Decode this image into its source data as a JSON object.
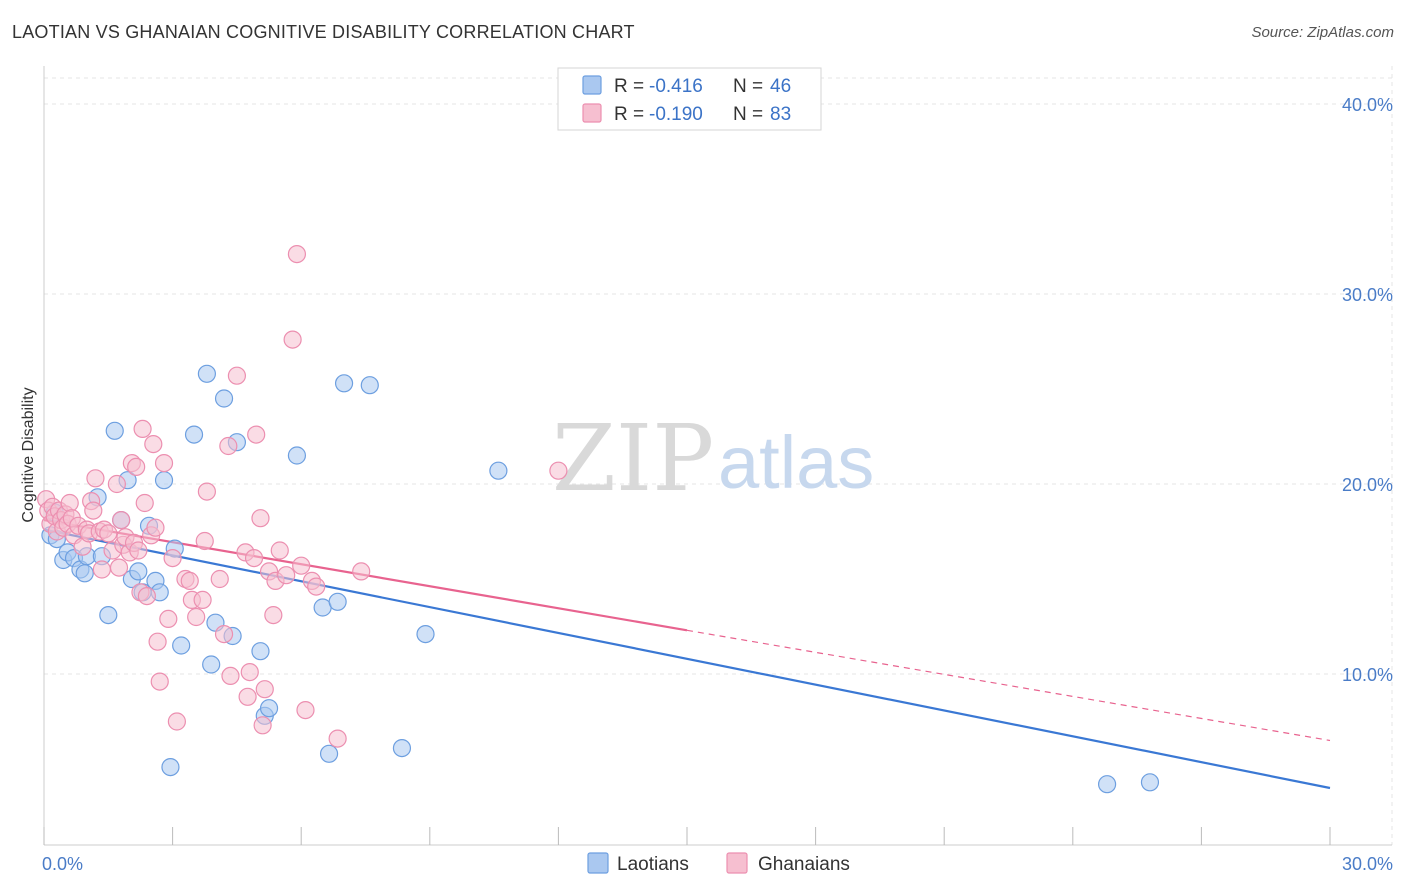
{
  "title": "LAOTIAN VS GHANAIAN COGNITIVE DISABILITY CORRELATION CHART",
  "source": "Source: ZipAtlas.com",
  "watermark": {
    "zip": "ZIP",
    "atlas": "atlas"
  },
  "colors": {
    "laotian_fill": "#aac8f0",
    "laotian_stroke": "#6d9fe0",
    "laotian_line": "#3a78d4",
    "ghanaian_fill": "#f6bfd0",
    "ghanaian_stroke": "#ec8fb0",
    "ghanaian_line": "#e8638f",
    "tick_text": "#4a7cc7",
    "grid": "#e6e6e6"
  },
  "legend": {
    "rows": [
      {
        "r_label": "R = ",
        "r_value": "-0.416",
        "n_label": "N = ",
        "n_value": "46"
      },
      {
        "r_label": "R = ",
        "r_value": "-0.190",
        "n_label": "N = ",
        "n_value": "83"
      }
    ]
  },
  "chart_data": {
    "type": "scatter",
    "xlabel": "",
    "ylabel": "Cognitive Disability",
    "xlim": [
      0,
      30
    ],
    "ylim": [
      1,
      42
    ],
    "x_tick_labels": [
      "0.0%",
      "30.0%"
    ],
    "y_ticks": [
      10,
      20,
      30,
      40
    ],
    "y_tick_labels": [
      "10.0%",
      "20.0%",
      "30.0%",
      "40.0%"
    ],
    "grid": true,
    "legend_position": "top-center",
    "series": [
      {
        "name": "Laotians",
        "trend": {
          "x0": 0,
          "y0": 17.6,
          "x1": 30,
          "y1": 4.0,
          "solid_until": 30
        },
        "points": [
          [
            0.15,
            17.3
          ],
          [
            0.3,
            17.1
          ],
          [
            0.45,
            16.0
          ],
          [
            0.55,
            16.4
          ],
          [
            0.7,
            16.1
          ],
          [
            0.85,
            15.5
          ],
          [
            0.95,
            15.3
          ],
          [
            1.0,
            16.2
          ],
          [
            1.25,
            19.3
          ],
          [
            1.35,
            16.2
          ],
          [
            1.5,
            13.1
          ],
          [
            1.65,
            22.8
          ],
          [
            1.8,
            18.1
          ],
          [
            1.95,
            20.2
          ],
          [
            2.05,
            15.0
          ],
          [
            2.2,
            15.4
          ],
          [
            2.3,
            14.3
          ],
          [
            2.45,
            17.8
          ],
          [
            2.6,
            14.9
          ],
          [
            2.7,
            14.3
          ],
          [
            2.8,
            20.2
          ],
          [
            3.05,
            16.6
          ],
          [
            3.2,
            11.5
          ],
          [
            3.5,
            22.6
          ],
          [
            3.8,
            25.8
          ],
          [
            3.9,
            10.5
          ],
          [
            4.0,
            12.7
          ],
          [
            4.2,
            24.5
          ],
          [
            4.4,
            12.0
          ],
          [
            4.5,
            22.2
          ],
          [
            5.05,
            11.2
          ],
          [
            5.15,
            7.8
          ],
          [
            5.25,
            8.2
          ],
          [
            5.9,
            21.5
          ],
          [
            6.5,
            13.5
          ],
          [
            6.65,
            5.8
          ],
          [
            6.85,
            13.8
          ],
          [
            7.0,
            25.3
          ],
          [
            7.6,
            25.2
          ],
          [
            8.35,
            6.1
          ],
          [
            8.9,
            12.1
          ],
          [
            10.6,
            20.7
          ],
          [
            2.95,
            5.1
          ],
          [
            24.8,
            4.2
          ],
          [
            25.8,
            4.3
          ],
          [
            0.25,
            18.5
          ]
        ]
      },
      {
        "name": "Ghanaians",
        "trend": {
          "x0": 0,
          "y0": 18.1,
          "x1": 30,
          "y1": 6.5,
          "solid_until": 15
        },
        "points": [
          [
            0.05,
            19.2
          ],
          [
            0.1,
            18.6
          ],
          [
            0.15,
            17.9
          ],
          [
            0.2,
            18.8
          ],
          [
            0.25,
            18.3
          ],
          [
            0.3,
            17.5
          ],
          [
            0.35,
            18.6
          ],
          [
            0.4,
            18.1
          ],
          [
            0.45,
            17.7
          ],
          [
            0.5,
            18.4
          ],
          [
            0.55,
            17.9
          ],
          [
            0.6,
            19.0
          ],
          [
            0.65,
            18.2
          ],
          [
            0.7,
            17.3
          ],
          [
            0.8,
            17.8
          ],
          [
            0.9,
            16.7
          ],
          [
            1.0,
            17.6
          ],
          [
            1.05,
            17.4
          ],
          [
            1.1,
            19.1
          ],
          [
            1.15,
            18.6
          ],
          [
            1.2,
            20.3
          ],
          [
            1.3,
            17.5
          ],
          [
            1.35,
            15.5
          ],
          [
            1.4,
            17.6
          ],
          [
            1.5,
            17.4
          ],
          [
            1.6,
            16.5
          ],
          [
            1.7,
            20.0
          ],
          [
            1.75,
            15.6
          ],
          [
            1.8,
            18.1
          ],
          [
            1.85,
            16.8
          ],
          [
            1.9,
            17.2
          ],
          [
            2.0,
            16.4
          ],
          [
            2.05,
            21.1
          ],
          [
            2.1,
            16.9
          ],
          [
            2.15,
            20.9
          ],
          [
            2.2,
            16.5
          ],
          [
            2.25,
            14.3
          ],
          [
            2.3,
            22.9
          ],
          [
            2.35,
            19.0
          ],
          [
            2.4,
            14.1
          ],
          [
            2.5,
            17.3
          ],
          [
            2.55,
            22.1
          ],
          [
            2.6,
            17.7
          ],
          [
            2.65,
            11.7
          ],
          [
            2.7,
            9.6
          ],
          [
            2.8,
            21.1
          ],
          [
            2.9,
            12.9
          ],
          [
            3.0,
            16.1
          ],
          [
            3.1,
            7.5
          ],
          [
            3.3,
            15.0
          ],
          [
            3.4,
            14.9
          ],
          [
            3.45,
            13.9
          ],
          [
            3.55,
            13.0
          ],
          [
            3.7,
            13.9
          ],
          [
            3.75,
            17.0
          ],
          [
            3.8,
            19.6
          ],
          [
            4.1,
            15.0
          ],
          [
            4.2,
            12.1
          ],
          [
            4.3,
            22.0
          ],
          [
            4.35,
            9.9
          ],
          [
            4.5,
            25.7
          ],
          [
            4.7,
            16.4
          ],
          [
            4.75,
            8.8
          ],
          [
            4.8,
            10.1
          ],
          [
            4.95,
            22.6
          ],
          [
            5.05,
            18.2
          ],
          [
            5.1,
            7.3
          ],
          [
            5.15,
            9.2
          ],
          [
            5.25,
            15.4
          ],
          [
            5.35,
            13.1
          ],
          [
            5.4,
            14.9
          ],
          [
            5.5,
            16.5
          ],
          [
            5.65,
            15.2
          ],
          [
            5.8,
            27.6
          ],
          [
            5.9,
            32.1
          ],
          [
            6.0,
            15.7
          ],
          [
            6.1,
            8.1
          ],
          [
            6.25,
            14.9
          ],
          [
            6.35,
            14.6
          ],
          [
            6.85,
            6.6
          ],
          [
            7.4,
            15.4
          ],
          [
            12.0,
            20.7
          ],
          [
            4.9,
            16.1
          ]
        ]
      }
    ]
  }
}
